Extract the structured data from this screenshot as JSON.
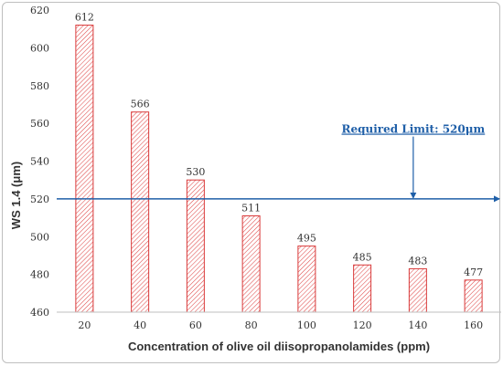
{
  "chart_data": {
    "type": "bar",
    "categories": [
      "20",
      "40",
      "60",
      "80",
      "100",
      "120",
      "140",
      "160"
    ],
    "values": [
      612,
      566,
      530,
      511,
      495,
      485,
      483,
      477
    ],
    "data_labels": [
      "612",
      "566",
      "530",
      "511",
      "495",
      "485",
      "483",
      "477"
    ],
    "xlabel": "Concentration of olive oil diisopropanolamides (ppm)",
    "ylabel": "WS 1.4 (μm)",
    "ylim": [
      460,
      620
    ],
    "yticks": [
      460,
      480,
      500,
      520,
      540,
      560,
      580,
      600,
      620
    ],
    "grid": false,
    "bar_fill": "#ffffff",
    "bar_hatch_color": "#e04a4a",
    "bar_border_color": "#d93a3a",
    "reference_line": {
      "value": 520,
      "label": "Required Limit: 520μm",
      "color": "#1f5fa8",
      "pointer_category": "140"
    }
  }
}
